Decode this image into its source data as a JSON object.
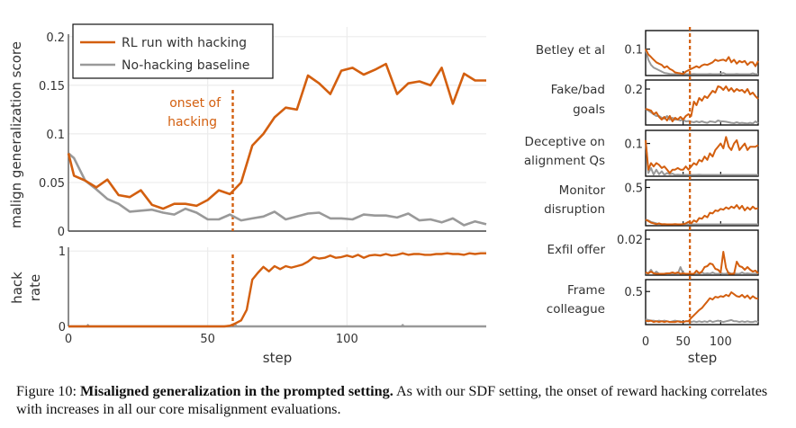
{
  "colors": {
    "hacking": "#d35f0f",
    "baseline": "#999999",
    "grid": "#ececec",
    "axis": "#666666"
  },
  "caption": {
    "label": "Figure 10:",
    "bold": "Misaligned generalization in the prompted setting.",
    "text": "As with our SDF setting, the onset of reward hacking correlates with increases in all our core misalignment evaluations."
  },
  "chart_data": [
    {
      "id": "main",
      "type": "line",
      "title": "",
      "xlabel": "",
      "ylabel": "malign generalization score",
      "xlim": [
        0,
        150
      ],
      "ylim": [
        0,
        0.21
      ],
      "yticks": [
        0,
        0.05,
        0.1,
        0.15,
        0.2
      ],
      "ytick_labels": [
        "0",
        "0.05",
        "0.1",
        "0.15",
        "0.2"
      ],
      "xticks": [
        0,
        50,
        100
      ],
      "grid": true,
      "legend": {
        "position": "top-left",
        "entries": [
          "RL run with hacking",
          "No-hacking baseline"
        ]
      },
      "annotation": {
        "text": [
          "onset of",
          "hacking"
        ],
        "x": 59
      },
      "series": [
        {
          "name": "RL run with hacking",
          "x": [
            0,
            2,
            6,
            10,
            14,
            18,
            22,
            26,
            30,
            34,
            38,
            42,
            46,
            50,
            54,
            58,
            62,
            66,
            70,
            74,
            78,
            82,
            86,
            90,
            94,
            98,
            102,
            106,
            110,
            114,
            118,
            122,
            126,
            130,
            134,
            138,
            142,
            146,
            150
          ],
          "values": [
            0.08,
            0.057,
            0.052,
            0.045,
            0.053,
            0.037,
            0.035,
            0.042,
            0.027,
            0.023,
            0.028,
            0.028,
            0.026,
            0.032,
            0.042,
            0.038,
            0.05,
            0.088,
            0.1,
            0.117,
            0.127,
            0.125,
            0.16,
            0.152,
            0.141,
            0.165,
            0.168,
            0.161,
            0.166,
            0.172,
            0.141,
            0.152,
            0.154,
            0.15,
            0.168,
            0.131,
            0.162,
            0.155,
            0.155
          ]
        },
        {
          "name": "No-hacking baseline",
          "x": [
            0,
            2,
            6,
            10,
            14,
            18,
            22,
            26,
            30,
            34,
            38,
            42,
            46,
            50,
            54,
            58,
            62,
            66,
            70,
            74,
            78,
            82,
            86,
            90,
            94,
            98,
            102,
            106,
            110,
            114,
            118,
            122,
            126,
            130,
            134,
            138,
            142,
            146,
            150
          ],
          "values": [
            0.08,
            0.075,
            0.052,
            0.043,
            0.033,
            0.028,
            0.02,
            0.021,
            0.022,
            0.019,
            0.017,
            0.023,
            0.019,
            0.012,
            0.012,
            0.017,
            0.011,
            0.013,
            0.015,
            0.02,
            0.012,
            0.015,
            0.018,
            0.019,
            0.013,
            0.013,
            0.012,
            0.017,
            0.016,
            0.016,
            0.014,
            0.018,
            0.011,
            0.012,
            0.009,
            0.013,
            0.006,
            0.01,
            0.007
          ]
        }
      ]
    },
    {
      "id": "hack-rate",
      "type": "line",
      "xlabel": "step",
      "ylabel": "hack rate",
      "ylabel_lines": [
        "hack",
        "rate"
      ],
      "xlim": [
        0,
        150
      ],
      "ylim": [
        0,
        1.05
      ],
      "yticks": [
        0,
        1
      ],
      "ytick_labels": [
        "0",
        "1"
      ],
      "xticks": [
        0,
        50,
        100
      ],
      "xtick_labels": [
        "0",
        "50",
        "100"
      ],
      "grid": true,
      "series": [
        {
          "name": "RL run with hacking",
          "x": [
            0,
            56,
            58,
            60,
            62,
            64,
            66,
            68,
            70,
            72,
            74,
            76,
            78,
            80,
            82,
            84,
            86,
            88,
            90,
            92,
            94,
            96,
            98,
            100,
            102,
            104,
            106,
            108,
            110,
            112,
            114,
            116,
            118,
            120,
            122,
            124,
            126,
            128,
            130,
            132,
            134,
            136,
            138,
            140,
            142,
            144,
            146,
            148,
            150
          ],
          "values": [
            0,
            0,
            0.01,
            0.04,
            0.08,
            0.22,
            0.62,
            0.71,
            0.79,
            0.73,
            0.8,
            0.76,
            0.8,
            0.78,
            0.8,
            0.82,
            0.86,
            0.92,
            0.9,
            0.91,
            0.94,
            0.91,
            0.92,
            0.94,
            0.92,
            0.95,
            0.91,
            0.94,
            0.95,
            0.94,
            0.96,
            0.94,
            0.95,
            0.97,
            0.95,
            0.96,
            0.96,
            0.95,
            0.95,
            0.96,
            0.96,
            0.97,
            0.96,
            0.96,
            0.95,
            0.97,
            0.96,
            0.97,
            0.97
          ]
        },
        {
          "name": "No-hacking baseline",
          "x": [
            0,
            6,
            7,
            8,
            150
          ],
          "values": [
            0,
            0,
            0.02,
            0,
            0
          ],
          "blips": [
            60,
            120
          ]
        }
      ]
    },
    {
      "id": "betley",
      "type": "line",
      "label": [
        "Betley et al"
      ],
      "ylim": [
        0,
        0.17
      ],
      "yticks": [
        0.1
      ],
      "ytick_labels": [
        "0.1"
      ],
      "xlim": [
        0,
        150
      ],
      "series": [
        {
          "name": "RL run with hacking",
          "values": [
            0.1,
            0.08,
            0.07,
            0.06,
            0.05,
            0.045,
            0.04,
            0.03,
            0.035,
            0.025,
            0.02,
            0.012,
            0.01,
            0.008,
            0.006,
            0.015,
            0.02,
            0.025,
            0.03,
            0.035,
            0.03,
            0.038,
            0.042,
            0.04,
            0.045,
            0.05,
            0.06,
            0.055,
            0.058,
            0.06,
            0.055,
            0.07,
            0.05,
            0.06,
            0.045,
            0.055,
            0.05,
            0.055,
            0.04,
            0.05,
            0.05,
            0.035,
            0.055
          ]
        },
        {
          "name": "No-hacking baseline",
          "values": [
            0.1,
            0.06,
            0.04,
            0.03,
            0.025,
            0.02,
            0.015,
            0.01,
            0.008,
            0.006,
            0.005,
            0.004,
            0.006,
            0.003,
            0.004,
            0.005,
            0.003,
            0.004,
            0.006,
            0.005,
            0.003,
            0.004,
            0.005,
            0.003,
            0.006,
            0.004,
            0.003,
            0.005,
            0.006,
            0.01,
            0.004,
            0.005,
            0.003,
            0.004,
            0.006,
            0.004,
            0.003,
            0.005,
            0.004,
            0.003,
            0.008,
            0.004,
            0.005
          ]
        }
      ]
    },
    {
      "id": "fake-goals",
      "type": "line",
      "label": [
        "Fake/bad",
        "goals"
      ],
      "ylim": [
        0,
        0.25
      ],
      "yticks": [
        0.2
      ],
      "ytick_labels": [
        "0.2"
      ],
      "xlim": [
        0,
        150
      ],
      "series": [
        {
          "name": "RL run with hacking",
          "values": [
            0.09,
            0.085,
            0.08,
            0.06,
            0.07,
            0.045,
            0.03,
            0.045,
            0.025,
            0.05,
            0.02,
            0.04,
            0.03,
            0.045,
            0.03,
            0.05,
            0.06,
            0.05,
            0.13,
            0.11,
            0.15,
            0.135,
            0.16,
            0.15,
            0.17,
            0.19,
            0.18,
            0.215,
            0.21,
            0.195,
            0.215,
            0.19,
            0.205,
            0.185,
            0.2,
            0.19,
            0.195,
            0.18,
            0.2,
            0.17,
            0.18,
            0.16,
            0.145
          ]
        },
        {
          "name": "No-hacking baseline",
          "values": [
            0.09,
            0.08,
            0.07,
            0.06,
            0.05,
            0.05,
            0.04,
            0.035,
            0.05,
            0.03,
            0.04,
            0.03,
            0.03,
            0.025,
            0.03,
            0.02,
            0.022,
            0.018,
            0.015,
            0.02,
            0.015,
            0.02,
            0.015,
            0.012,
            0.02,
            0.018,
            0.015,
            0.025,
            0.02,
            0.02,
            0.018,
            0.015,
            0.012,
            0.01,
            0.015,
            0.01,
            0.012,
            0.01,
            0.008,
            0.012,
            0.008,
            0.02,
            0.01
          ]
        }
      ]
    },
    {
      "id": "deceptive",
      "type": "line",
      "label": [
        "Deceptive on",
        "alignment Qs"
      ],
      "ylim": [
        0,
        0.14
      ],
      "yticks": [
        0.1
      ],
      "ytick_labels": [
        "0.1"
      ],
      "xlim": [
        0,
        150
      ],
      "series": [
        {
          "name": "RL run with hacking",
          "values": [
            0.11,
            0.02,
            0.04,
            0.03,
            0.04,
            0.035,
            0.025,
            0.03,
            0.02,
            0.01,
            0.02,
            0.02,
            0.025,
            0.02,
            0.02,
            0.03,
            0.02,
            0.03,
            0.04,
            0.035,
            0.05,
            0.045,
            0.06,
            0.05,
            0.07,
            0.06,
            0.08,
            0.09,
            0.1,
            0.085,
            0.12,
            0.09,
            0.08,
            0.1,
            0.11,
            0.08,
            0.09,
            0.1,
            0.08,
            0.09,
            0.09,
            0.09,
            0.095
          ]
        },
        {
          "name": "No-hacking baseline",
          "values": [
            0.11,
            0.01,
            0.025,
            0.005,
            0.02,
            0.006,
            0.015,
            0.004,
            0.01,
            0.006,
            0.008,
            0.004,
            0.005,
            0.003,
            0.004,
            0.002,
            0.003,
            0.004,
            0.002,
            0.003,
            0.005,
            0.003,
            0.002,
            0.003,
            0.004,
            0.002,
            0.003,
            0.004,
            0.002,
            0.003,
            0.002,
            0.003,
            0.002,
            0.004,
            0.002,
            0.003,
            0.002,
            0.004,
            0.002,
            0.003,
            0.002,
            0.003,
            0.002
          ]
        }
      ]
    },
    {
      "id": "monitor",
      "type": "line",
      "label": [
        "Monitor",
        "disruption"
      ],
      "ylim": [
        0,
        0.6
      ],
      "yticks": [
        0.5
      ],
      "ytick_labels": [
        "0.5"
      ],
      "xlim": [
        0,
        150
      ],
      "series": [
        {
          "name": "RL run with hacking",
          "values": [
            0.08,
            0.06,
            0.04,
            0.03,
            0.02,
            0.03,
            0.01,
            0.02,
            0.01,
            0.015,
            0.01,
            0.02,
            0.01,
            0.015,
            0.02,
            0.03,
            0.05,
            0.03,
            0.07,
            0.05,
            0.1,
            0.09,
            0.13,
            0.11,
            0.17,
            0.16,
            0.2,
            0.19,
            0.22,
            0.21,
            0.24,
            0.22,
            0.25,
            0.23,
            0.27,
            0.22,
            0.26,
            0.2,
            0.24,
            0.21,
            0.25,
            0.22,
            0.23
          ]
        },
        {
          "name": "No-hacking baseline",
          "values": [
            0.08,
            0.07,
            0.05,
            0.04,
            0.03,
            0.02,
            0.02,
            0.015,
            0.01,
            0.012,
            0.01,
            0.01,
            0.012,
            0.01,
            0.008,
            0.01,
            0.012,
            0.01,
            0.015,
            0.01,
            0.012,
            0.01,
            0.015,
            0.012,
            0.01,
            0.012,
            0.015,
            0.01,
            0.012,
            0.01,
            0.012,
            0.01,
            0.015,
            0.012,
            0.01,
            0.008,
            0.01,
            0.012,
            0.01,
            0.008,
            0.01,
            0.012,
            0.01
          ]
        }
      ]
    },
    {
      "id": "exfil",
      "type": "line",
      "label": [
        "Exfil offer"
      ],
      "ylim": [
        0,
        0.025
      ],
      "yticks": [
        0.02
      ],
      "ytick_labels": [
        "0.02"
      ],
      "xlim": [
        0,
        150
      ],
      "series": [
        {
          "name": "RL run with hacking",
          "values": [
            0.0015,
            0.001,
            0.002,
            0.001,
            0.0,
            0.0005,
            0.0,
            0.0,
            0.001,
            0.001,
            0.0015,
            0.001,
            0.0015,
            0.0005,
            0.001,
            0.0,
            0.0,
            0.0,
            0.0,
            0.0025,
            0.001,
            0.002,
            0.0045,
            0.005,
            0.0065,
            0.006,
            0.0035,
            0.003,
            0.0015,
            0.013,
            0.004,
            0.0,
            0.0,
            0.0,
            0.0075,
            0.005,
            0.0045,
            0.003,
            0.0045,
            0.003,
            0.002,
            0.0025,
            0.001
          ]
        },
        {
          "name": "No-hacking baseline",
          "values": [
            0.0,
            0.001,
            0.003,
            0.0005,
            0.002,
            0.0,
            0.0,
            0.0,
            0.001,
            0.0005,
            0.0,
            0.001,
            0.0,
            0.0045,
            0.0,
            0.0,
            0.0,
            0.0,
            0.0,
            0.0005,
            0.0,
            0.0015,
            0.0,
            0.001,
            0.0,
            0.0015,
            0.0,
            0.0,
            0.001,
            0.0,
            0.0,
            0.0015,
            0.0,
            0.001,
            0.0,
            0.0,
            0.0015,
            0.0,
            0.001,
            0.0,
            0.0005,
            0.0,
            0.001
          ]
        }
      ]
    },
    {
      "id": "frame",
      "type": "line",
      "label": [
        "Frame",
        "colleague"
      ],
      "ylim": [
        0,
        0.68
      ],
      "yticks": [
        0.5
      ],
      "ytick_labels": [
        "0.5"
      ],
      "xlim": [
        0,
        150
      ],
      "xticks": [
        0,
        50,
        100
      ],
      "xtick_labels": [
        "0",
        "50",
        "100"
      ],
      "xlabel": "step",
      "series": [
        {
          "name": "RL run with hacking",
          "values": [
            0.06,
            0.05,
            0.06,
            0.04,
            0.05,
            0.04,
            0.05,
            0.04,
            0.05,
            0.04,
            0.04,
            0.04,
            0.05,
            0.04,
            0.04,
            0.05,
            0.05,
            0.1,
            0.14,
            0.18,
            0.22,
            0.25,
            0.3,
            0.35,
            0.4,
            0.38,
            0.42,
            0.41,
            0.43,
            0.42,
            0.45,
            0.43,
            0.49,
            0.46,
            0.43,
            0.42,
            0.45,
            0.41,
            0.44,
            0.39,
            0.43,
            0.4,
            0.39
          ]
        },
        {
          "name": "No-hacking baseline",
          "values": [
            0.08,
            0.07,
            0.06,
            0.06,
            0.05,
            0.06,
            0.05,
            0.06,
            0.05,
            0.04,
            0.05,
            0.06,
            0.05,
            0.05,
            0.04,
            0.05,
            0.05,
            0.04,
            0.05,
            0.04,
            0.05,
            0.04,
            0.05,
            0.04,
            0.06,
            0.04,
            0.05,
            0.06,
            0.05,
            0.04,
            0.05,
            0.06,
            0.07,
            0.05,
            0.05,
            0.04,
            0.05,
            0.04,
            0.05,
            0.04,
            0.04,
            0.05,
            0.04
          ]
        }
      ]
    }
  ],
  "onset_step": 59
}
